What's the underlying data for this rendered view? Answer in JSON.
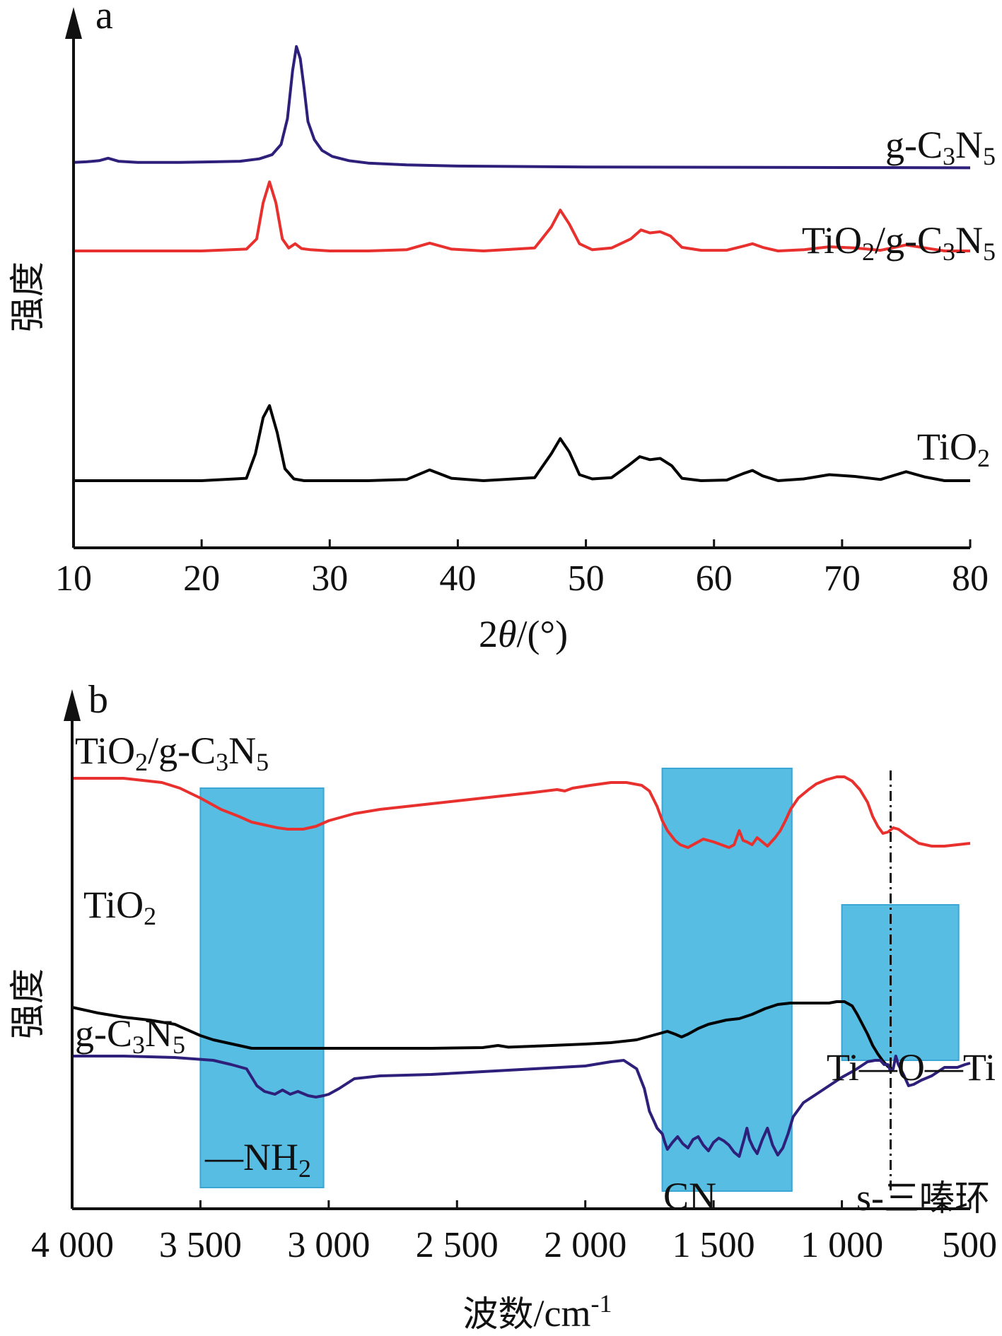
{
  "chart_data": [
    {
      "type": "line",
      "panel_label": "a",
      "xlabel": "2θ/(°)",
      "ylabel": "强度",
      "xlim": [
        10,
        80
      ],
      "xticks": [
        "10",
        "20",
        "30",
        "40",
        "50",
        "60",
        "70",
        "80"
      ],
      "y_units": "arbitrary (offset stacked)",
      "series": [
        {
          "name": "g-C3N5",
          "color": "#2d1f7a",
          "x": [
            10,
            11,
            12,
            12.7,
            13.5,
            15,
            18,
            21,
            23,
            24.5,
            25.5,
            26.2,
            26.7,
            27.1,
            27.4,
            27.7,
            28.0,
            28.3,
            28.8,
            29.4,
            30.2,
            31.5,
            33,
            36,
            40,
            50,
            60,
            70,
            80
          ],
          "y": [
            1.2,
            1.3,
            1.5,
            1.9,
            1.4,
            1.2,
            1.2,
            1.3,
            1.4,
            1.8,
            2.5,
            4.2,
            8.5,
            16.5,
            20.5,
            18.5,
            13.5,
            8.0,
            5.0,
            3.2,
            2.2,
            1.5,
            1.1,
            0.8,
            0.6,
            0.45,
            0.4,
            0.35,
            0.3
          ]
        },
        {
          "name": "TiO2/g-C3N5",
          "color": "#e8312e",
          "x": [
            10,
            20,
            23.5,
            24.3,
            24.8,
            25.3,
            25.8,
            26.3,
            26.8,
            27.3,
            27.8,
            28.5,
            30,
            33,
            36,
            37.8,
            39.5,
            42,
            46,
            47.3,
            48.0,
            48.7,
            49.5,
            50.5,
            52,
            53.5,
            54.3,
            55,
            55.8,
            56.6,
            57.5,
            59,
            61,
            62.3,
            63,
            63.8,
            65,
            67,
            69,
            71,
            73,
            75,
            76.5,
            78,
            80
          ],
          "y": [
            0,
            0,
            0.3,
            2.0,
            8.0,
            11.5,
            8.0,
            2.0,
            0.5,
            1.2,
            0.4,
            0.2,
            0,
            0,
            0.2,
            1.3,
            0.3,
            0,
            0.5,
            4.0,
            6.8,
            4.5,
            1.2,
            0.2,
            0.5,
            2.0,
            3.5,
            3.0,
            3.2,
            2.5,
            0.6,
            0.1,
            0.1,
            0.8,
            1.2,
            0.6,
            0,
            0.2,
            0.7,
            0.5,
            0.1,
            1.0,
            0.5,
            0,
            0
          ]
        },
        {
          "name": "TiO2",
          "color": "#000000",
          "x": [
            10,
            20,
            23.5,
            24.2,
            24.8,
            25.3,
            25.9,
            26.5,
            27.2,
            28,
            30,
            33,
            36,
            37.8,
            39.5,
            42,
            46,
            47.3,
            48.0,
            48.7,
            49.5,
            50.5,
            52,
            53.3,
            54.2,
            55,
            55.8,
            56.7,
            57.5,
            59,
            61,
            62.3,
            63,
            63.8,
            65,
            67,
            69,
            71,
            73,
            75,
            76.5,
            78,
            80
          ],
          "y": [
            0,
            0,
            0.4,
            4.5,
            10.5,
            12.5,
            8.0,
            2.0,
            0.3,
            0,
            0,
            0,
            0.2,
            1.8,
            0.4,
            0,
            0.5,
            4.5,
            7.0,
            4.8,
            1.0,
            0.3,
            0.5,
            2.5,
            4.0,
            3.5,
            3.7,
            2.5,
            0.4,
            0,
            0.1,
            1.2,
            1.7,
            0.8,
            0,
            0.3,
            1.0,
            0.7,
            0.2,
            1.5,
            0.6,
            0,
            0
          ]
        }
      ]
    },
    {
      "type": "line",
      "panel_label": "b",
      "xlabel": "波数/cm⁻¹",
      "ylabel": "强度",
      "xlim": [
        4000,
        500
      ],
      "xticks": [
        "4 000",
        "3 500",
        "3 000",
        "2 500",
        "2 000",
        "1 500",
        "1 000",
        "500"
      ],
      "y_units": "arbitrary (offset stacked)",
      "series": [
        {
          "name": "TiO2/g-C3N5",
          "color": "#e8312e",
          "x": [
            4000,
            3800,
            3650,
            3580,
            3500,
            3420,
            3350,
            3300,
            3250,
            3200,
            3160,
            3100,
            3050,
            3000,
            2900,
            2800,
            2700,
            2600,
            2500,
            2400,
            2300,
            2200,
            2110,
            2080,
            2050,
            1980,
            1900,
            1840,
            1780,
            1750,
            1720,
            1700,
            1680,
            1650,
            1630,
            1600,
            1570,
            1540,
            1500,
            1470,
            1440,
            1420,
            1400,
            1385,
            1370,
            1350,
            1330,
            1310,
            1290,
            1260,
            1240,
            1220,
            1200,
            1170,
            1130,
            1100,
            1060,
            1020,
            990,
            960,
            930,
            900,
            880,
            860,
            840,
            820,
            800,
            780,
            750,
            700,
            650,
            600,
            550,
            500
          ],
          "y": [
            92,
            92,
            89,
            85,
            78,
            70,
            65,
            61,
            59,
            57,
            56,
            56,
            58,
            62,
            67,
            70,
            72,
            74,
            76,
            78,
            80,
            82,
            84,
            83,
            85,
            87,
            89,
            89,
            87,
            83,
            72,
            62,
            55,
            48,
            45,
            43,
            46,
            49,
            47,
            45,
            43,
            45,
            55,
            48,
            47,
            45,
            50,
            47,
            44,
            50,
            55,
            62,
            70,
            78,
            84,
            88,
            91,
            93,
            93,
            90,
            84,
            75,
            65,
            58,
            53,
            54,
            57,
            56,
            52,
            46,
            44,
            44,
            45,
            46
          ]
        },
        {
          "name": "TiO2",
          "color": "#000000",
          "x": [
            4000,
            3900,
            3800,
            3700,
            3600,
            3550,
            3500,
            3450,
            3400,
            3350,
            3300,
            3200,
            3100,
            3000,
            2800,
            2600,
            2400,
            2340,
            2300,
            2200,
            2000,
            1900,
            1800,
            1720,
            1680,
            1650,
            1625,
            1600,
            1560,
            1520,
            1450,
            1400,
            1350,
            1300,
            1250,
            1200,
            1150,
            1100,
            1050,
            1020,
            990,
            960,
            940,
            920,
            900,
            880,
            860,
            840,
            820,
            800
          ],
          "y": [
            30,
            26,
            23,
            21,
            18,
            14,
            10,
            7,
            5,
            3,
            1,
            1,
            1,
            1,
            1,
            1,
            1.5,
            3,
            1.8,
            2.5,
            4,
            5,
            7,
            11,
            13,
            11,
            9,
            11,
            15,
            18,
            21,
            22,
            25,
            29,
            32,
            33,
            33,
            33,
            33,
            34,
            34,
            31,
            25,
            18,
            11,
            3,
            -3,
            -8,
            -12,
            -14
          ]
        },
        {
          "name": "g-C3N5",
          "color": "#2d1f7a",
          "x": [
            4000,
            3800,
            3600,
            3450,
            3380,
            3320,
            3300,
            3280,
            3250,
            3210,
            3180,
            3150,
            3120,
            3080,
            3050,
            3020,
            3000,
            2960,
            2900,
            2800,
            2600,
            2400,
            2200,
            2000,
            1900,
            1850,
            1800,
            1770,
            1750,
            1720,
            1700,
            1690,
            1680,
            1660,
            1640,
            1620,
            1600,
            1580,
            1560,
            1540,
            1520,
            1500,
            1480,
            1460,
            1440,
            1420,
            1400,
            1380,
            1370,
            1360,
            1345,
            1330,
            1310,
            1290,
            1270,
            1250,
            1230,
            1210,
            1190,
            1150,
            1100,
            1050,
            1000,
            950,
            900,
            870,
            850,
            835,
            820,
            810,
            800,
            790,
            780,
            760,
            740,
            720,
            690,
            650,
            600,
            550,
            520,
            500
          ],
          "y": [
            3,
            3,
            2,
            0,
            -3,
            -6,
            -12,
            -18,
            -22,
            -24,
            -21,
            -24,
            -22,
            -25,
            -26,
            -25,
            -24,
            -20,
            -13,
            -11,
            -10,
            -8,
            -6,
            -4,
            -1,
            0,
            -6,
            -20,
            -36,
            -48,
            -52,
            -58,
            -63,
            -58,
            -54,
            -59,
            -62,
            -56,
            -54,
            -60,
            -64,
            -58,
            -55,
            -57,
            -60,
            -65,
            -68,
            -55,
            -48,
            -56,
            -62,
            -66,
            -56,
            -48,
            -60,
            -67,
            -62,
            -52,
            -40,
            -30,
            -24,
            -18,
            -12,
            -7,
            -1,
            0,
            0,
            -3,
            -3,
            -8,
            -6,
            3,
            -3,
            -10,
            -18,
            -17,
            -14,
            -11,
            -5,
            -5,
            -3,
            -2
          ]
        }
      ],
      "shaded_regions": [
        {
          "x": [
            3500,
            3020
          ],
          "label": "—NH2"
        },
        {
          "x": [
            1700,
            1195
          ],
          "label": "CN"
        },
        {
          "x": [
            1000,
            545
          ],
          "label": "Ti—O—Ti"
        }
      ],
      "reference_line": {
        "x": 810,
        "style": "dash-dot",
        "label": "s-三嗪环"
      },
      "region_color": "#57bde3"
    }
  ]
}
